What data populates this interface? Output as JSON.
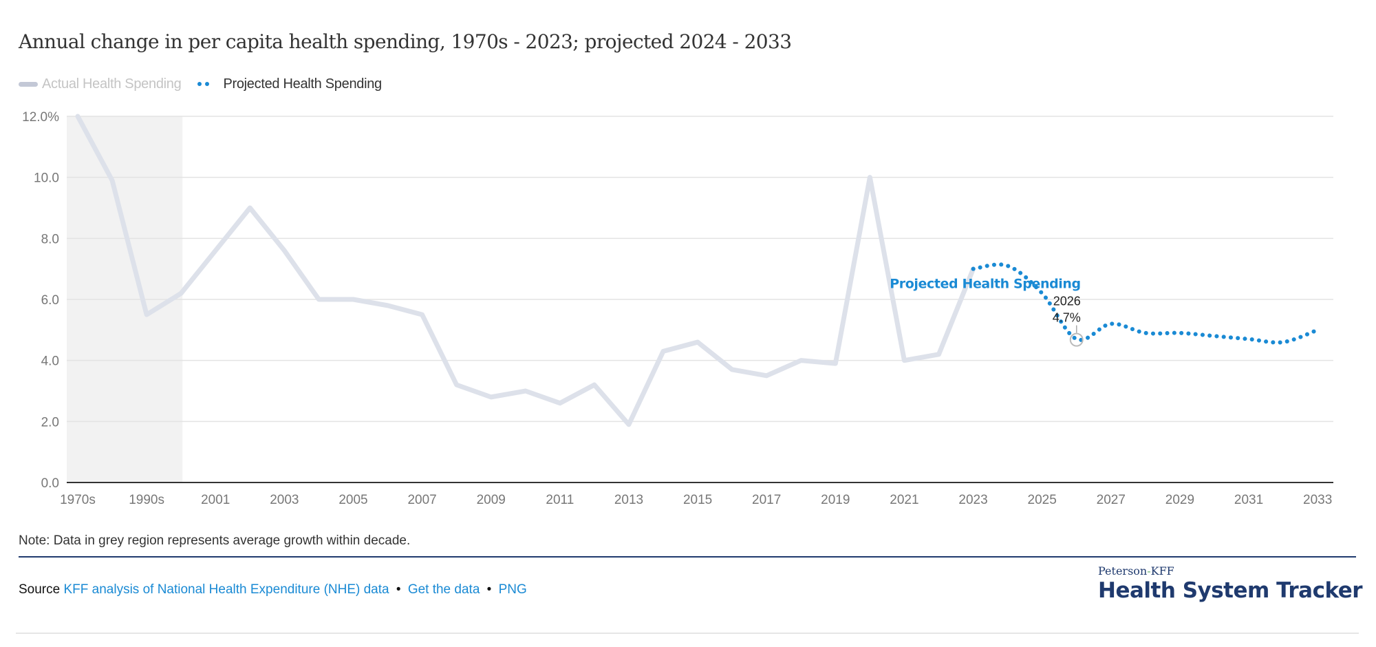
{
  "title": "Annual change in per capita health spending, 1970s - 2023; projected 2024 - 2033",
  "legend": {
    "actual_label": "Actual Health Spending",
    "projected_label": "Projected Health Spending"
  },
  "colors": {
    "actual_line": "#dde1ea",
    "actual_swatch": "#c3c8d6",
    "projected": "#1a8ad4",
    "grey_region": "#f2f2f2",
    "grid": "#e3e3e3",
    "axis": "#333333",
    "tick_label": "#777777",
    "brand_navy": "#1f3a6e"
  },
  "chart_data": {
    "type": "line",
    "title": "Annual change in per capita health spending, 1970s - 2023; projected 2024 - 2033",
    "xlabel": "",
    "ylabel": "",
    "ylim": [
      0,
      12
    ],
    "yticks": [
      0,
      2,
      4,
      6,
      8,
      10,
      12
    ],
    "ytick_labels": [
      "0.0",
      "2.0",
      "4.0",
      "6.0",
      "8.0",
      "10.0",
      "12.0%"
    ],
    "grid": true,
    "legend_position": "top-left",
    "categories": [
      "1970s",
      "1980s",
      "1990s",
      "2000",
      "2001",
      "2002",
      "2003",
      "2004",
      "2005",
      "2006",
      "2007",
      "2008",
      "2009",
      "2010",
      "2011",
      "2012",
      "2013",
      "2014",
      "2015",
      "2016",
      "2017",
      "2018",
      "2019",
      "2020",
      "2021",
      "2022",
      "2023",
      "2024",
      "2025",
      "2026",
      "2027",
      "2028",
      "2029",
      "2030",
      "2031",
      "2032",
      "2033"
    ],
    "xtick_labels": [
      "1970s",
      "1990s",
      "2001",
      "2003",
      "2005",
      "2007",
      "2009",
      "2011",
      "2013",
      "2015",
      "2017",
      "2019",
      "2021",
      "2023",
      "2025",
      "2027",
      "2029",
      "2031",
      "2033"
    ],
    "series": [
      {
        "name": "Actual Health Spending",
        "style": "solid",
        "values": [
          12.0,
          9.9,
          5.5,
          6.2,
          7.6,
          9.0,
          7.6,
          6.0,
          6.0,
          5.8,
          5.5,
          3.2,
          2.8,
          3.0,
          2.6,
          3.2,
          1.9,
          4.3,
          4.6,
          3.7,
          3.5,
          4.0,
          3.9,
          10.0,
          4.0,
          4.2,
          7.0,
          null,
          null,
          null,
          null,
          null,
          null,
          null,
          null,
          null,
          null
        ]
      },
      {
        "name": "Projected Health Spending",
        "style": "dotted",
        "values": [
          null,
          null,
          null,
          null,
          null,
          null,
          null,
          null,
          null,
          null,
          null,
          null,
          null,
          null,
          null,
          null,
          null,
          null,
          null,
          null,
          null,
          null,
          null,
          null,
          null,
          null,
          7.0,
          7.1,
          6.2,
          4.7,
          5.2,
          4.9,
          4.9,
          4.8,
          4.7,
          4.6,
          5.0
        ]
      }
    ],
    "shaded_region": {
      "from": "1970s",
      "to": "2000",
      "meaning": "average growth within decade"
    },
    "annotations": [
      {
        "text": "Projected Health Spending",
        "series": "Projected Health Spending"
      },
      {
        "category": "2026",
        "label": "2026",
        "value_label": "4.7%"
      }
    ]
  },
  "note": "Note: Data in grey region represents average growth within decade.",
  "source": {
    "label": "Source",
    "links": [
      "KFF analysis of National Health Expenditure (NHE) data",
      "Get the data",
      "PNG"
    ],
    "separator": "•"
  },
  "logo": {
    "top_left": "Peterson",
    "hyphen": "-",
    "top_right": "KFF",
    "main": "Health System Tracker"
  }
}
